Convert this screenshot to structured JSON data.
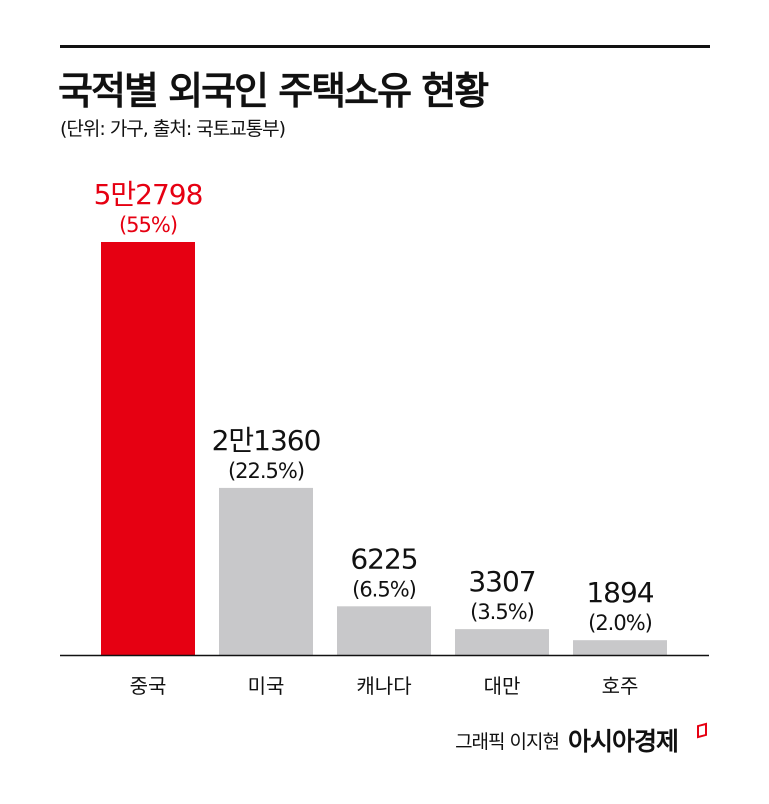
{
  "chart_data": {
    "type": "bar",
    "title": "국적별 외국인 주택소유 현황",
    "subtitle": "(단위: 가구, 출처: 국토교통부)",
    "categories": [
      "중국",
      "미국",
      "캐나다",
      "대만",
      "호주"
    ],
    "values": [
      52798,
      21360,
      6225,
      3307,
      1894
    ],
    "value_labels": [
      "5만2798",
      "2만1360",
      "6225",
      "3307",
      "1894"
    ],
    "percent_labels": [
      "(55%)",
      "(22.5%)",
      "(6.5%)",
      "(3.5%)",
      "(2.0%)"
    ],
    "highlight_index": 0,
    "colors": {
      "highlight": "#e60012",
      "default": "#c8c8ca",
      "text": "#111111"
    },
    "xlabel": "",
    "ylabel": "",
    "ylim": [
      0,
      52798
    ],
    "grid": false
  },
  "credit": "그래픽 이지현",
  "brand": "아시아경제"
}
